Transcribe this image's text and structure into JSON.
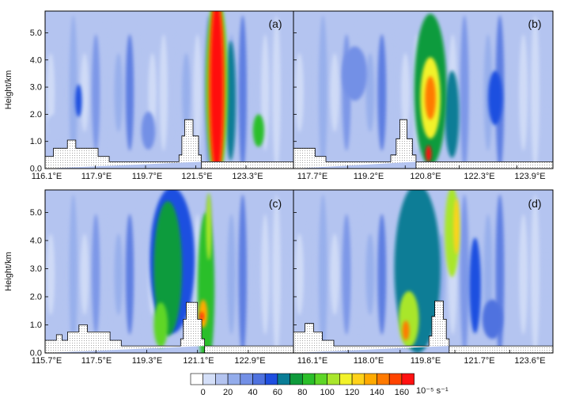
{
  "chart_data": [
    {
      "type": "heatmap",
      "panel_label": "(a)",
      "xlabel": "",
      "ylabel": "Height/km",
      "xticks": [
        "116.1°E",
        "117.9°E",
        "119.7°E",
        "121.5°E",
        "123.3°E"
      ],
      "yticks": [
        "0.0",
        "1.0",
        "2.0",
        "3.0",
        "4.0",
        "5.0"
      ],
      "xlim": [
        116.1,
        125.0
      ],
      "ylim": [
        0.0,
        5.8
      ],
      "xtick_values": [
        116.1,
        117.9,
        119.7,
        121.5,
        123.3
      ],
      "terrain": [
        [
          116.1,
          0.25
        ],
        [
          116.1,
          0.45
        ],
        [
          116.4,
          0.45
        ],
        [
          116.4,
          0.75
        ],
        [
          116.9,
          0.75
        ],
        [
          116.9,
          1.05
        ],
        [
          117.2,
          1.05
        ],
        [
          117.2,
          0.75
        ],
        [
          118.0,
          0.75
        ],
        [
          118.0,
          0.45
        ],
        [
          118.4,
          0.45
        ],
        [
          118.4,
          0.25
        ],
        [
          120.9,
          0.25
        ],
        [
          120.9,
          0.5
        ],
        [
          121.0,
          0.5
        ],
        [
          121.0,
          1.2
        ],
        [
          121.1,
          1.2
        ],
        [
          121.1,
          1.8
        ],
        [
          121.4,
          1.8
        ],
        [
          121.4,
          1.2
        ],
        [
          121.6,
          1.2
        ],
        [
          121.6,
          0.5
        ],
        [
          121.7,
          0.5
        ],
        [
          121.7,
          0.25
        ]
      ],
      "blobs": [
        {
          "x": 122.25,
          "y": 3.0,
          "rx": 0.4,
          "ry": 3.4,
          "level": 90
        },
        {
          "x": 122.25,
          "y": 3.0,
          "rx": 0.3,
          "ry": 3.3,
          "level": 140
        },
        {
          "x": 122.25,
          "y": 3.0,
          "rx": 0.22,
          "ry": 3.2,
          "level": 160
        },
        {
          "x": 122.75,
          "y": 2.5,
          "rx": 0.18,
          "ry": 2.2,
          "level": 60
        },
        {
          "x": 123.75,
          "y": 1.4,
          "rx": 0.2,
          "ry": 0.6,
          "level": 80
        },
        {
          "x": 117.3,
          "y": 2.5,
          "rx": 0.12,
          "ry": 0.6,
          "level": 45
        },
        {
          "x": 119.8,
          "y": 1.4,
          "rx": 0.25,
          "ry": 0.7,
          "level": 30
        },
        {
          "x": 116.5,
          "y": 1.6,
          "rx": 0.35,
          "ry": 0.4,
          "level": 10
        }
      ]
    },
    {
      "type": "heatmap",
      "panel_label": "(b)",
      "xlabel": "",
      "ylabel": "",
      "xticks": [
        "117.7°E",
        "119.2°E",
        "120.8°E",
        "122.3°E",
        "123.9°E"
      ],
      "yticks": [],
      "xlim": [
        117.7,
        124.9
      ],
      "ylim": [
        0.0,
        5.8
      ],
      "xtick_values": [
        117.7,
        119.2,
        120.8,
        122.3,
        123.9
      ],
      "terrain": [
        [
          117.7,
          0.25
        ],
        [
          117.7,
          0.75
        ],
        [
          118.3,
          0.75
        ],
        [
          118.3,
          0.45
        ],
        [
          118.6,
          0.45
        ],
        [
          118.6,
          0.25
        ],
        [
          120.4,
          0.25
        ],
        [
          120.4,
          0.5
        ],
        [
          120.55,
          0.5
        ],
        [
          120.55,
          1.1
        ],
        [
          120.65,
          1.1
        ],
        [
          120.65,
          1.8
        ],
        [
          120.85,
          1.8
        ],
        [
          120.85,
          1.1
        ],
        [
          121.0,
          1.1
        ],
        [
          121.0,
          0.5
        ],
        [
          121.1,
          0.5
        ],
        [
          121.1,
          0.25
        ]
      ],
      "blobs": [
        {
          "x": 121.5,
          "y": 2.9,
          "rx": 0.45,
          "ry": 2.8,
          "level": 70
        },
        {
          "x": 121.5,
          "y": 2.6,
          "rx": 0.28,
          "ry": 1.5,
          "level": 110
        },
        {
          "x": 121.5,
          "y": 2.6,
          "rx": 0.15,
          "ry": 0.8,
          "level": 140
        },
        {
          "x": 121.45,
          "y": 0.55,
          "rx": 0.08,
          "ry": 0.3,
          "level": 160
        },
        {
          "x": 122.1,
          "y": 2.0,
          "rx": 0.2,
          "ry": 1.6,
          "level": 60
        },
        {
          "x": 119.4,
          "y": 3.5,
          "rx": 0.35,
          "ry": 1.0,
          "level": 30
        },
        {
          "x": 123.3,
          "y": 2.6,
          "rx": 0.2,
          "ry": 1.0,
          "level": 45
        }
      ]
    },
    {
      "type": "heatmap",
      "panel_label": "(c)",
      "xlabel": "",
      "ylabel": "Height/km",
      "xticks": [
        "115.7°E",
        "117.5°E",
        "119.3°E",
        "121.1°E",
        "122.9°E"
      ],
      "yticks": [
        "0.0",
        "1.0",
        "2.0",
        "3.0",
        "4.0",
        "5.0"
      ],
      "xlim": [
        115.7,
        124.5
      ],
      "ylim": [
        0.0,
        5.8
      ],
      "xtick_values": [
        115.7,
        117.5,
        119.3,
        121.1,
        122.9
      ],
      "terrain": [
        [
          115.7,
          0.25
        ],
        [
          115.7,
          0.45
        ],
        [
          116.1,
          0.45
        ],
        [
          116.1,
          0.65
        ],
        [
          116.3,
          0.65
        ],
        [
          116.3,
          0.45
        ],
        [
          116.5,
          0.45
        ],
        [
          116.5,
          0.75
        ],
        [
          116.9,
          0.75
        ],
        [
          116.9,
          1.0
        ],
        [
          117.2,
          1.0
        ],
        [
          117.2,
          0.75
        ],
        [
          118.0,
          0.75
        ],
        [
          118.0,
          0.45
        ],
        [
          118.4,
          0.45
        ],
        [
          118.4,
          0.25
        ],
        [
          120.5,
          0.25
        ],
        [
          120.5,
          0.5
        ],
        [
          120.6,
          0.5
        ],
        [
          120.6,
          1.2
        ],
        [
          120.7,
          1.2
        ],
        [
          120.7,
          1.8
        ],
        [
          121.1,
          1.8
        ],
        [
          121.1,
          1.2
        ],
        [
          121.25,
          1.2
        ],
        [
          121.25,
          0.5
        ],
        [
          121.35,
          0.5
        ],
        [
          121.35,
          0.25
        ]
      ],
      "blobs": [
        {
          "x": 120.2,
          "y": 3.3,
          "rx": 0.8,
          "ry": 2.6,
          "level": 50
        },
        {
          "x": 120.05,
          "y": 3.0,
          "rx": 0.5,
          "ry": 2.4,
          "level": 70
        },
        {
          "x": 119.8,
          "y": 1.0,
          "rx": 0.25,
          "ry": 0.8,
          "level": 90
        },
        {
          "x": 121.4,
          "y": 2.2,
          "rx": 0.3,
          "ry": 2.8,
          "level": 80
        },
        {
          "x": 121.3,
          "y": 1.4,
          "rx": 0.15,
          "ry": 0.5,
          "level": 130
        },
        {
          "x": 121.25,
          "y": 1.3,
          "rx": 0.06,
          "ry": 0.15,
          "level": 160
        },
        {
          "x": 121.5,
          "y": 4.5,
          "rx": 0.1,
          "ry": 1.2,
          "level": 100
        }
      ]
    },
    {
      "type": "heatmap",
      "panel_label": "(d)",
      "xlabel": "",
      "ylabel": "",
      "xticks": [
        "116.1°E",
        "118.0°E",
        "119.8°E",
        "121.7°E",
        "123.6°E"
      ],
      "yticks": [],
      "xlim": [
        116.1,
        125.1
      ],
      "ylim": [
        0.0,
        5.8
      ],
      "xtick_values": [
        116.1,
        118.0,
        119.8,
        121.7,
        123.6
      ],
      "terrain": [
        [
          116.1,
          0.25
        ],
        [
          116.1,
          0.75
        ],
        [
          116.5,
          0.75
        ],
        [
          116.5,
          1.05
        ],
        [
          116.8,
          1.05
        ],
        [
          116.8,
          0.75
        ],
        [
          117.1,
          0.75
        ],
        [
          117.1,
          0.45
        ],
        [
          117.5,
          0.45
        ],
        [
          117.5,
          0.25
        ],
        [
          120.8,
          0.25
        ],
        [
          120.8,
          0.6
        ],
        [
          120.9,
          0.6
        ],
        [
          120.9,
          1.3
        ],
        [
          121.0,
          1.3
        ],
        [
          121.0,
          1.85
        ],
        [
          121.3,
          1.85
        ],
        [
          121.3,
          1.2
        ],
        [
          121.4,
          1.2
        ],
        [
          121.4,
          0.5
        ],
        [
          121.5,
          0.5
        ],
        [
          121.5,
          0.25
        ]
      ],
      "blobs": [
        {
          "x": 120.4,
          "y": 3.0,
          "rx": 0.8,
          "ry": 3.0,
          "level": 60
        },
        {
          "x": 120.1,
          "y": 1.2,
          "rx": 0.35,
          "ry": 1.0,
          "level": 100
        },
        {
          "x": 120.0,
          "y": 0.8,
          "rx": 0.12,
          "ry": 0.35,
          "level": 140
        },
        {
          "x": 121.6,
          "y": 4.3,
          "rx": 0.25,
          "ry": 1.6,
          "level": 100
        },
        {
          "x": 121.75,
          "y": 4.5,
          "rx": 0.1,
          "ry": 1.0,
          "level": 120
        },
        {
          "x": 122.4,
          "y": 2.4,
          "rx": 0.2,
          "ry": 1.7,
          "level": 50
        },
        {
          "x": 123.0,
          "y": 1.2,
          "rx": 0.35,
          "ry": 0.7,
          "level": 40
        }
      ]
    }
  ],
  "colorbar": {
    "tick_labels": [
      "0",
      "20",
      "40",
      "60",
      "80",
      "100",
      "120",
      "140",
      "160"
    ],
    "unit": "10⁻⁵ s⁻¹",
    "colors": [
      "#ffffff",
      "#d4dff8",
      "#b4c4f0",
      "#93aceb",
      "#7390e6",
      "#4f72df",
      "#1f4fe0",
      "#0a7d96",
      "#0f9b3c",
      "#2bbf2a",
      "#5ed627",
      "#a9e62c",
      "#f2f22a",
      "#ffd21a",
      "#ffaa00",
      "#ff7a00",
      "#ff4400",
      "#ff1111"
    ]
  }
}
